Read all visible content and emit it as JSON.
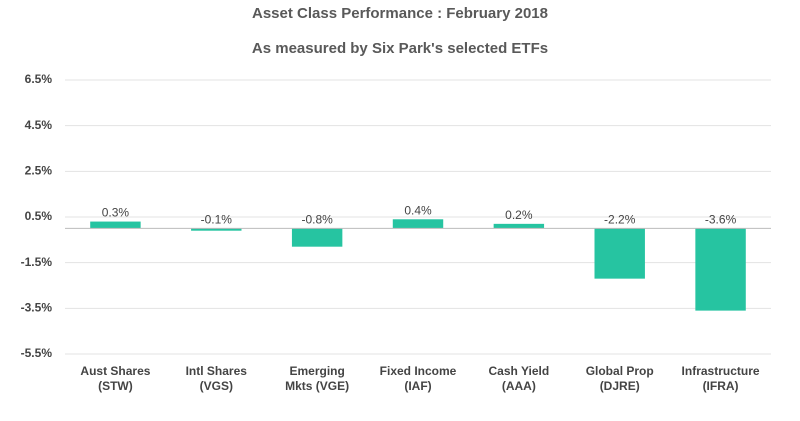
{
  "chart_data": {
    "type": "bar",
    "title": "Asset Class Performance : February 2018",
    "subtitle": "As measured by Six Park's selected ETFs",
    "categories": [
      "Aust Shares\n(STW)",
      "Intl Shares\n(VGS)",
      "Emerging\nMkts (VGE)",
      "Fixed Income\n(IAF)",
      "Cash Yield\n(AAA)",
      "Global Prop\n(DJRE)",
      "Infrastructure\n(IFRA)"
    ],
    "values": [
      0.3,
      -0.1,
      -0.8,
      0.4,
      0.2,
      -2.2,
      -3.6
    ],
    "value_labels": [
      "0.3%",
      "-0.1%",
      "-0.8%",
      "0.4%",
      "0.2%",
      "-2.2%",
      "-3.6%"
    ],
    "color": "#26c4a1",
    "ylim": [
      -5.5,
      6.5
    ],
    "yticks": [
      {
        "value": 6.5,
        "label": "6.5%"
      },
      {
        "value": 4.5,
        "label": "4.5%"
      },
      {
        "value": 2.5,
        "label": "2.5%"
      },
      {
        "value": 0.5,
        "label": "0.5%"
      },
      {
        "value": -1.5,
        "label": "-1.5%"
      },
      {
        "value": -3.5,
        "label": "-3.5%"
      },
      {
        "value": -5.5,
        "label": "-5.5%"
      }
    ],
    "grid": true
  }
}
